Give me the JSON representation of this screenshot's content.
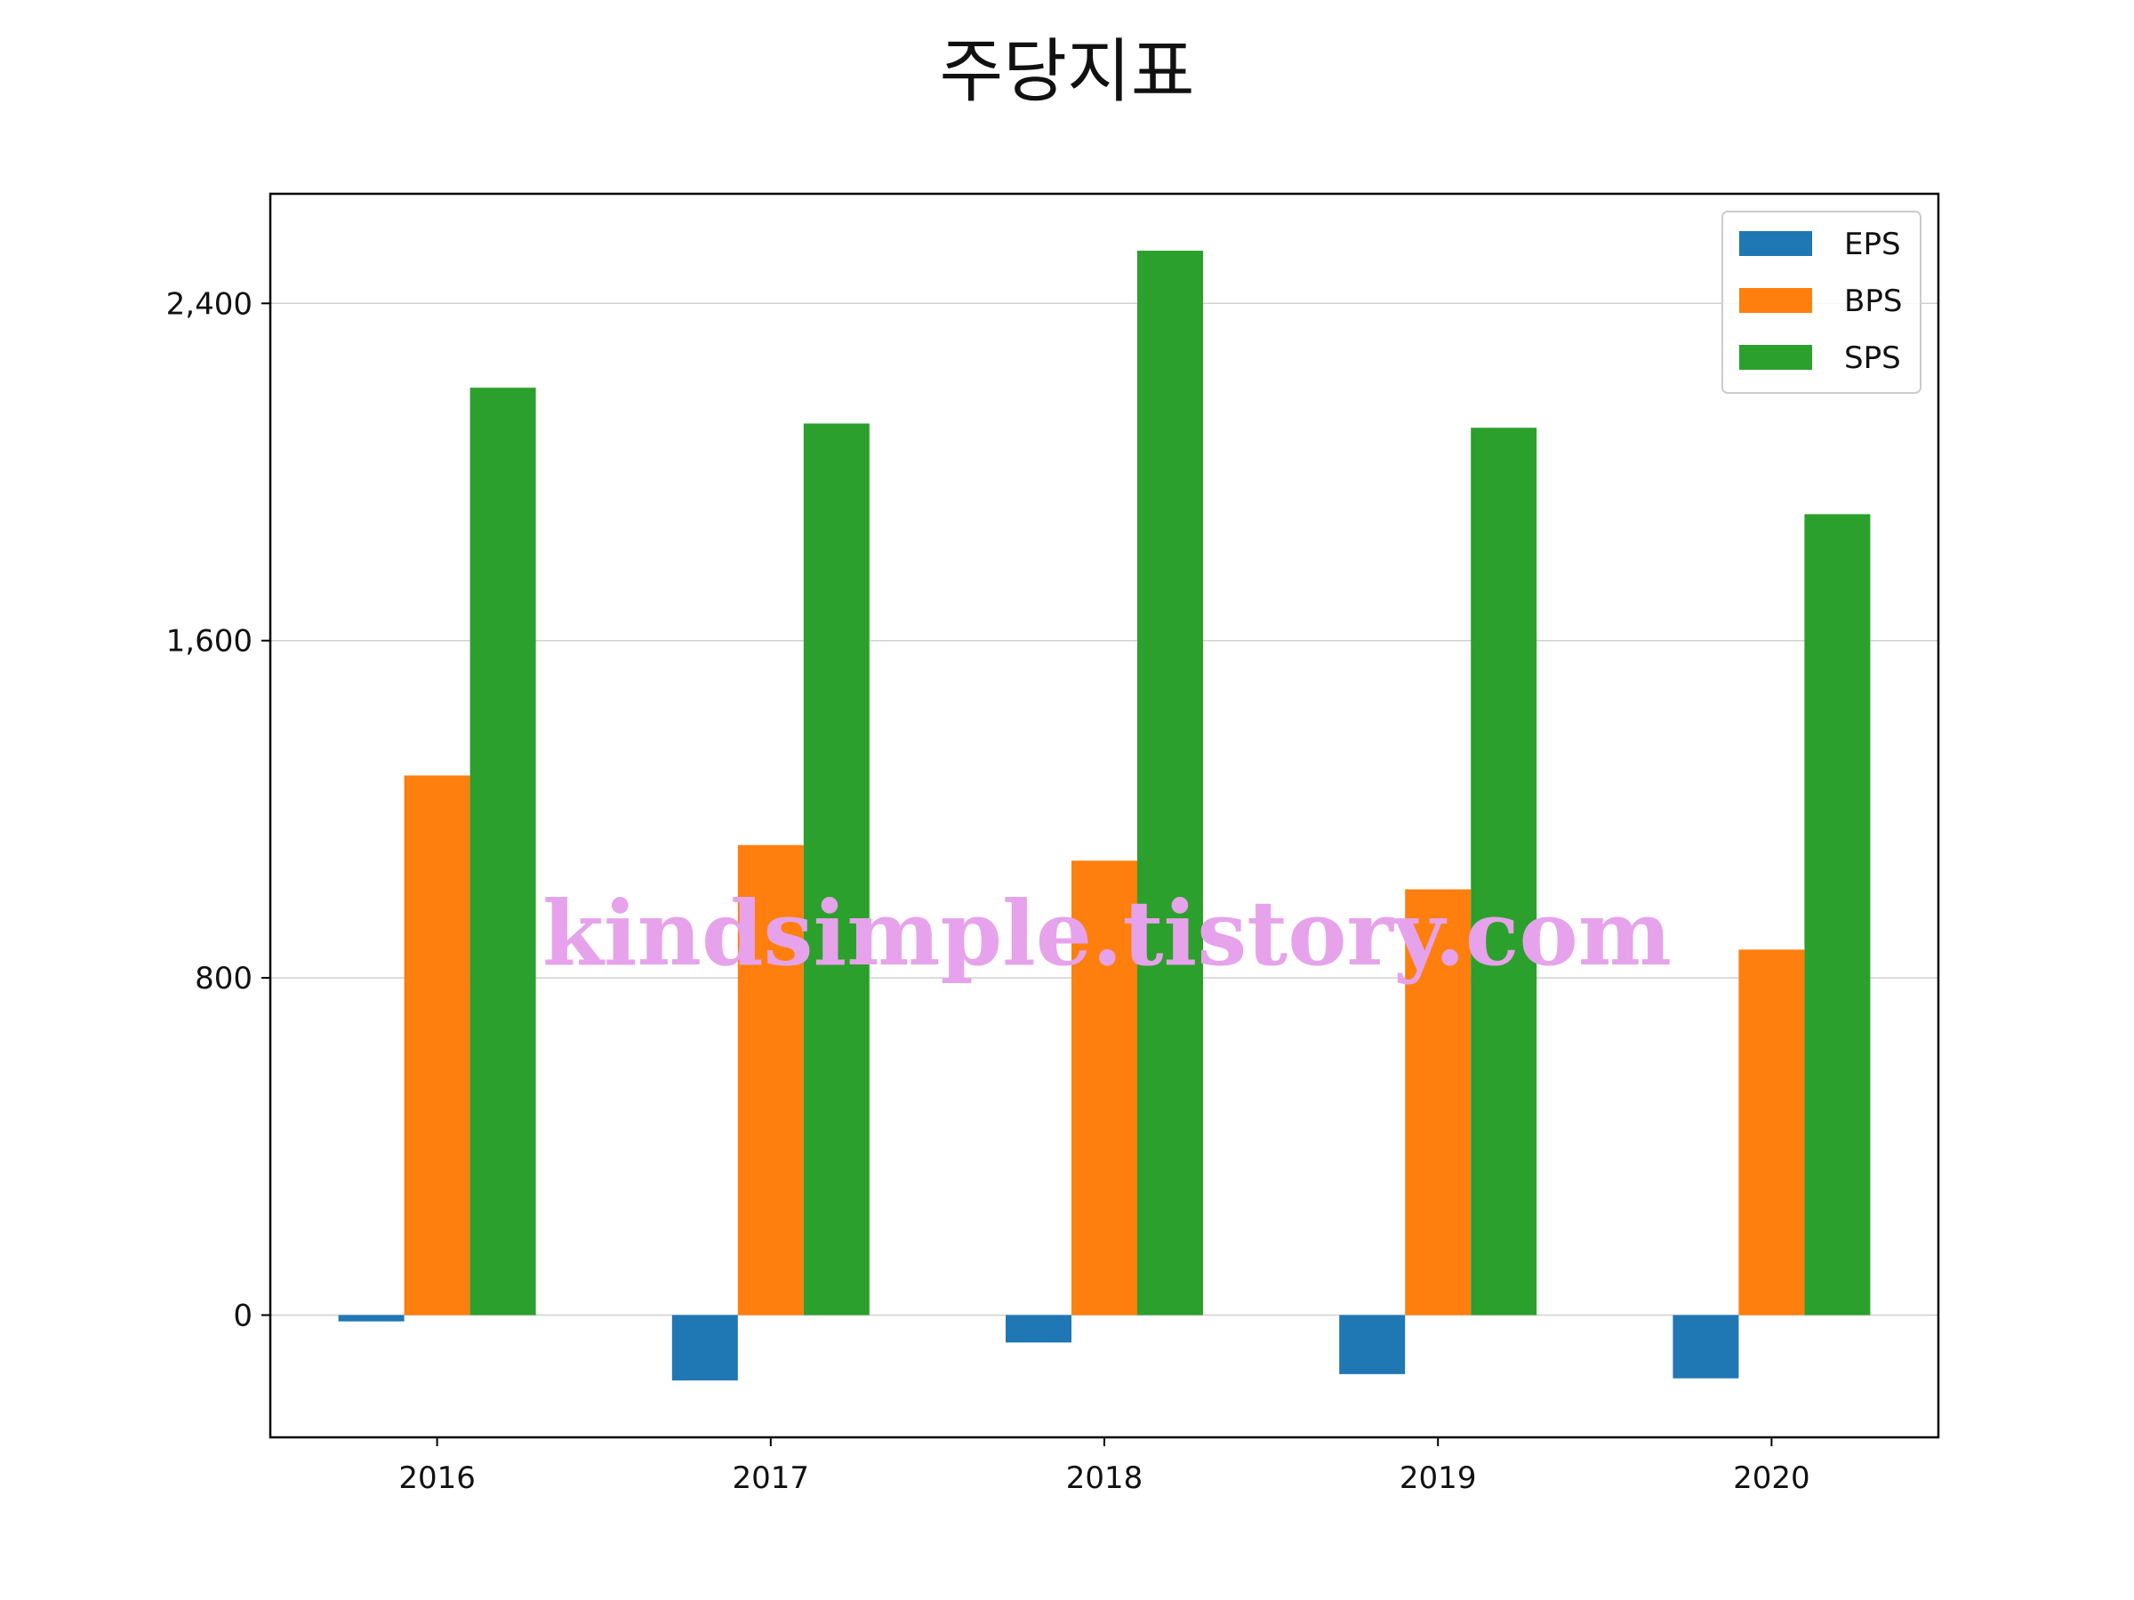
{
  "chart_data": {
    "type": "bar",
    "title": "주당지표",
    "xlabel": "",
    "ylabel": "",
    "categories": [
      "2016",
      "2017",
      "2018",
      "2019",
      "2020"
    ],
    "series": [
      {
        "name": "EPS",
        "color": "#1f77b4",
        "values": [
          -15,
          -155,
          -65,
          -140,
          -150
        ]
      },
      {
        "name": "BPS",
        "color": "#ff7f0e",
        "values": [
          1280,
          1115,
          1078,
          1010,
          867
        ]
      },
      {
        "name": "SPS",
        "color": "#2ca02c",
        "values": [
          2200,
          2115,
          2525,
          2105,
          1900
        ]
      }
    ],
    "ylim": [
      -290,
      2660
    ],
    "yticks": [
      0,
      800,
      1600,
      2400
    ],
    "ytick_labels": [
      "0",
      "800",
      "1,600",
      "2,400"
    ],
    "grid": "y",
    "legend_position": "top-right",
    "watermark": "kindsimple.tistory.com"
  }
}
